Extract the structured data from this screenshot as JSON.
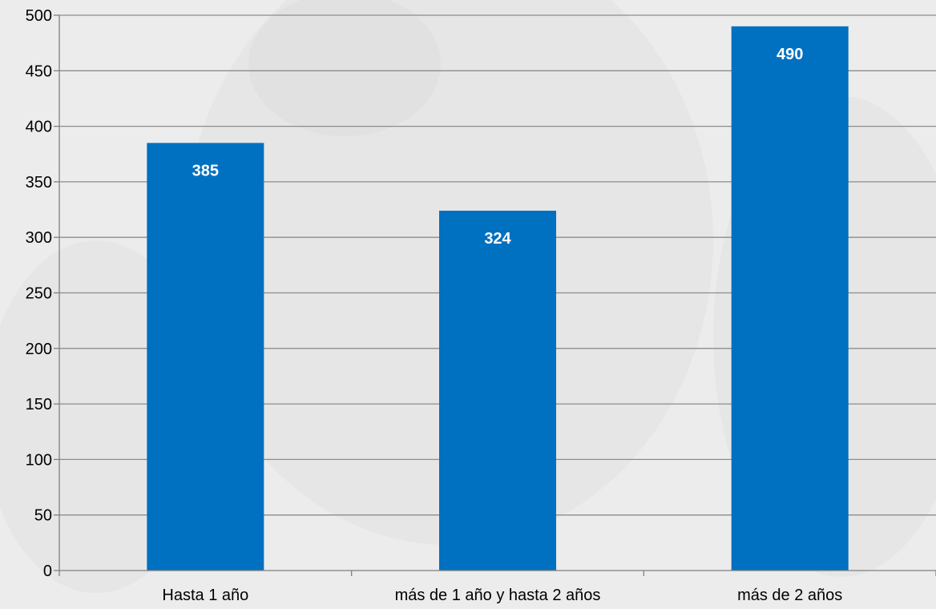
{
  "chart_data": {
    "type": "bar",
    "title": "",
    "xlabel": "",
    "ylabel": "",
    "categories": [
      "Hasta 1 año",
      "más de 1 año y hasta 2 años",
      "más de 2 años"
    ],
    "values": [
      385,
      324,
      490
    ],
    "data_labels": [
      "385",
      "324",
      "490"
    ],
    "ylim": [
      0,
      500
    ],
    "yticks": [
      0,
      50,
      100,
      150,
      200,
      250,
      300,
      350,
      400,
      450,
      500
    ],
    "ytick_labels": [
      "0",
      "50",
      "100",
      "150",
      "200",
      "250",
      "300",
      "350",
      "400",
      "450",
      "500"
    ],
    "grid": true,
    "legend": "none",
    "colors": {
      "bar": "#0070c0",
      "grid": "#8c8c8c",
      "axis": "#808080",
      "label": "#000000",
      "data_label": "#ffffff",
      "background": "#ececec"
    }
  }
}
